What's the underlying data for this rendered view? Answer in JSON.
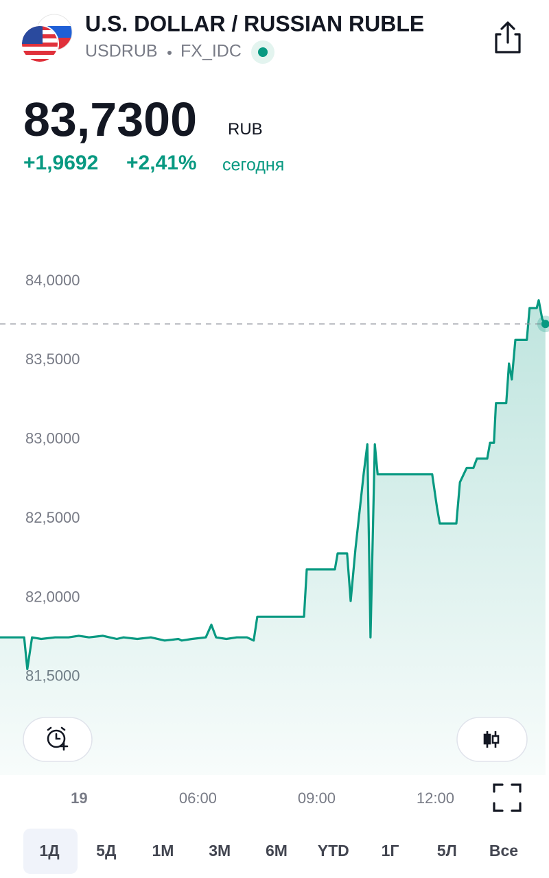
{
  "header": {
    "title": "U.S. DOLLAR / RUSSIAN RUBLE",
    "symbol": "USDRUB",
    "exchange": "FX_IDC"
  },
  "quote": {
    "price": "83,7300",
    "currency": "RUB",
    "change": "+1,9692",
    "change_percent": "+2,41%",
    "period": "сегодня"
  },
  "chart_data": {
    "type": "line",
    "x": [
      1.0,
      1.61,
      1.69,
      1.81,
      2.04,
      2.39,
      2.73,
      2.99,
      3.25,
      3.6,
      3.77,
      3.95,
      4.12,
      4.47,
      4.81,
      5.16,
      5.51,
      5.59,
      5.85,
      6.2,
      6.34,
      6.46,
      6.72,
      6.98,
      7.24,
      7.41,
      7.5,
      8.68,
      8.75,
      9.46,
      9.53,
      9.77,
      9.86,
      9.98,
      10.19,
      10.28,
      10.36,
      10.47,
      10.54,
      11.92,
      12.04,
      12.11,
      12.53,
      12.62,
      12.79,
      12.96,
      13.05,
      13.31,
      13.38,
      13.48,
      13.53,
      13.79,
      13.86,
      13.93,
      14.02,
      14.31,
      14.38,
      14.56,
      14.61,
      14.7,
      14.78
    ],
    "series": [
      {
        "color": "#089981",
        "values": [
          81.75,
          81.75,
          81.55,
          81.75,
          81.74,
          81.75,
          81.75,
          81.76,
          81.75,
          81.76,
          81.75,
          81.74,
          81.75,
          81.74,
          81.75,
          81.73,
          81.74,
          81.73,
          81.74,
          81.75,
          81.83,
          81.75,
          81.74,
          81.75,
          81.75,
          81.73,
          81.88,
          81.88,
          82.18,
          82.18,
          82.28,
          82.28,
          81.98,
          82.31,
          82.79,
          82.97,
          81.75,
          82.97,
          82.78,
          82.78,
          82.57,
          82.47,
          82.47,
          82.73,
          82.82,
          82.82,
          82.88,
          82.88,
          82.98,
          82.98,
          83.23,
          83.23,
          83.48,
          83.38,
          83.63,
          83.63,
          83.83,
          83.83,
          83.88,
          83.76,
          83.73
        ]
      }
    ],
    "xlim": [
      1,
      14.87
    ],
    "xticks": [
      {
        "value": 3,
        "label": "19"
      },
      {
        "value": 6,
        "label": "06:00"
      },
      {
        "value": 9,
        "label": "09:00"
      },
      {
        "value": 12,
        "label": "12:00"
      }
    ],
    "ylim": [
      80.88,
      84.52
    ],
    "yticks": [
      {
        "value": 84,
        "label": "84,0000"
      },
      {
        "value": 83.5,
        "label": "83,5000"
      },
      {
        "value": 83,
        "label": "83,0000"
      },
      {
        "value": 82.5,
        "label": "82,5000"
      },
      {
        "value": 82,
        "label": "82,0000"
      },
      {
        "value": 81.5,
        "label": "81,5000"
      }
    ],
    "grid": false
  },
  "ranges": [
    "1Д",
    "5Д",
    "1М",
    "3М",
    "6М",
    "YTD",
    "1Г",
    "5Л",
    "Все"
  ]
}
